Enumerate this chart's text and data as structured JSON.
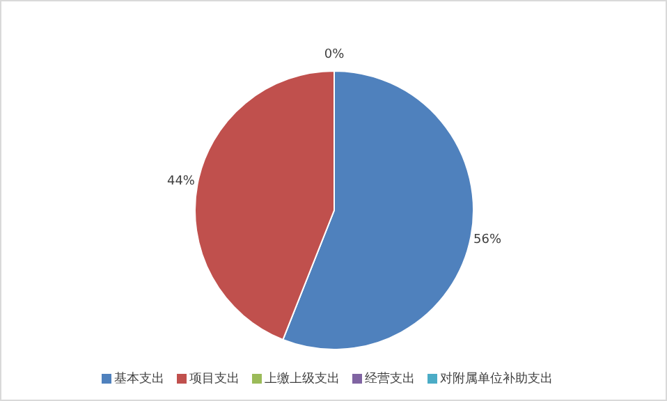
{
  "chart_data": {
    "type": "pie",
    "categories": [
      "基本支出",
      "项目支出",
      "上缴上级支出",
      "经营支出",
      "对附属单位补助支出"
    ],
    "values": [
      56,
      44,
      0,
      0,
      0
    ],
    "colors": [
      "#4f81bd",
      "#c0504d",
      "#9bbb59",
      "#8064a2",
      "#4bacc6"
    ],
    "value_labels": [
      "56%",
      "44%",
      "0%",
      null,
      null
    ],
    "legend": "bottom"
  }
}
